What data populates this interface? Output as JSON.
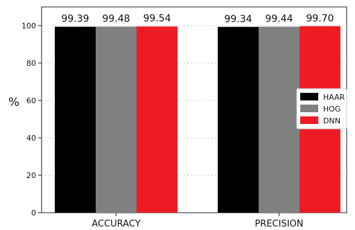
{
  "chart_data": {
    "type": "bar",
    "categories": [
      "ACCURACY",
      "PRECISION"
    ],
    "series": [
      {
        "name": "HAAR",
        "values": [
          99.39,
          99.34
        ],
        "value_labels": [
          "99.39",
          "99.34"
        ]
      },
      {
        "name": "HOG",
        "values": [
          99.48,
          99.44
        ],
        "value_labels": [
          "99.48",
          "99.44"
        ]
      },
      {
        "name": "DNN",
        "values": [
          99.54,
          99.7
        ],
        "value_labels": [
          "99.54",
          "99.70"
        ]
      }
    ],
    "title": "",
    "xlabel": "",
    "ylabel": "%",
    "ylim": [
      0,
      100
    ],
    "yticks": [
      0,
      20,
      40,
      60,
      80,
      100
    ],
    "grid": true,
    "legend_position": "right",
    "colors": {
      "HAAR": "#000000",
      "HOG": "#808080",
      "DNN": "#ed1c24"
    }
  }
}
